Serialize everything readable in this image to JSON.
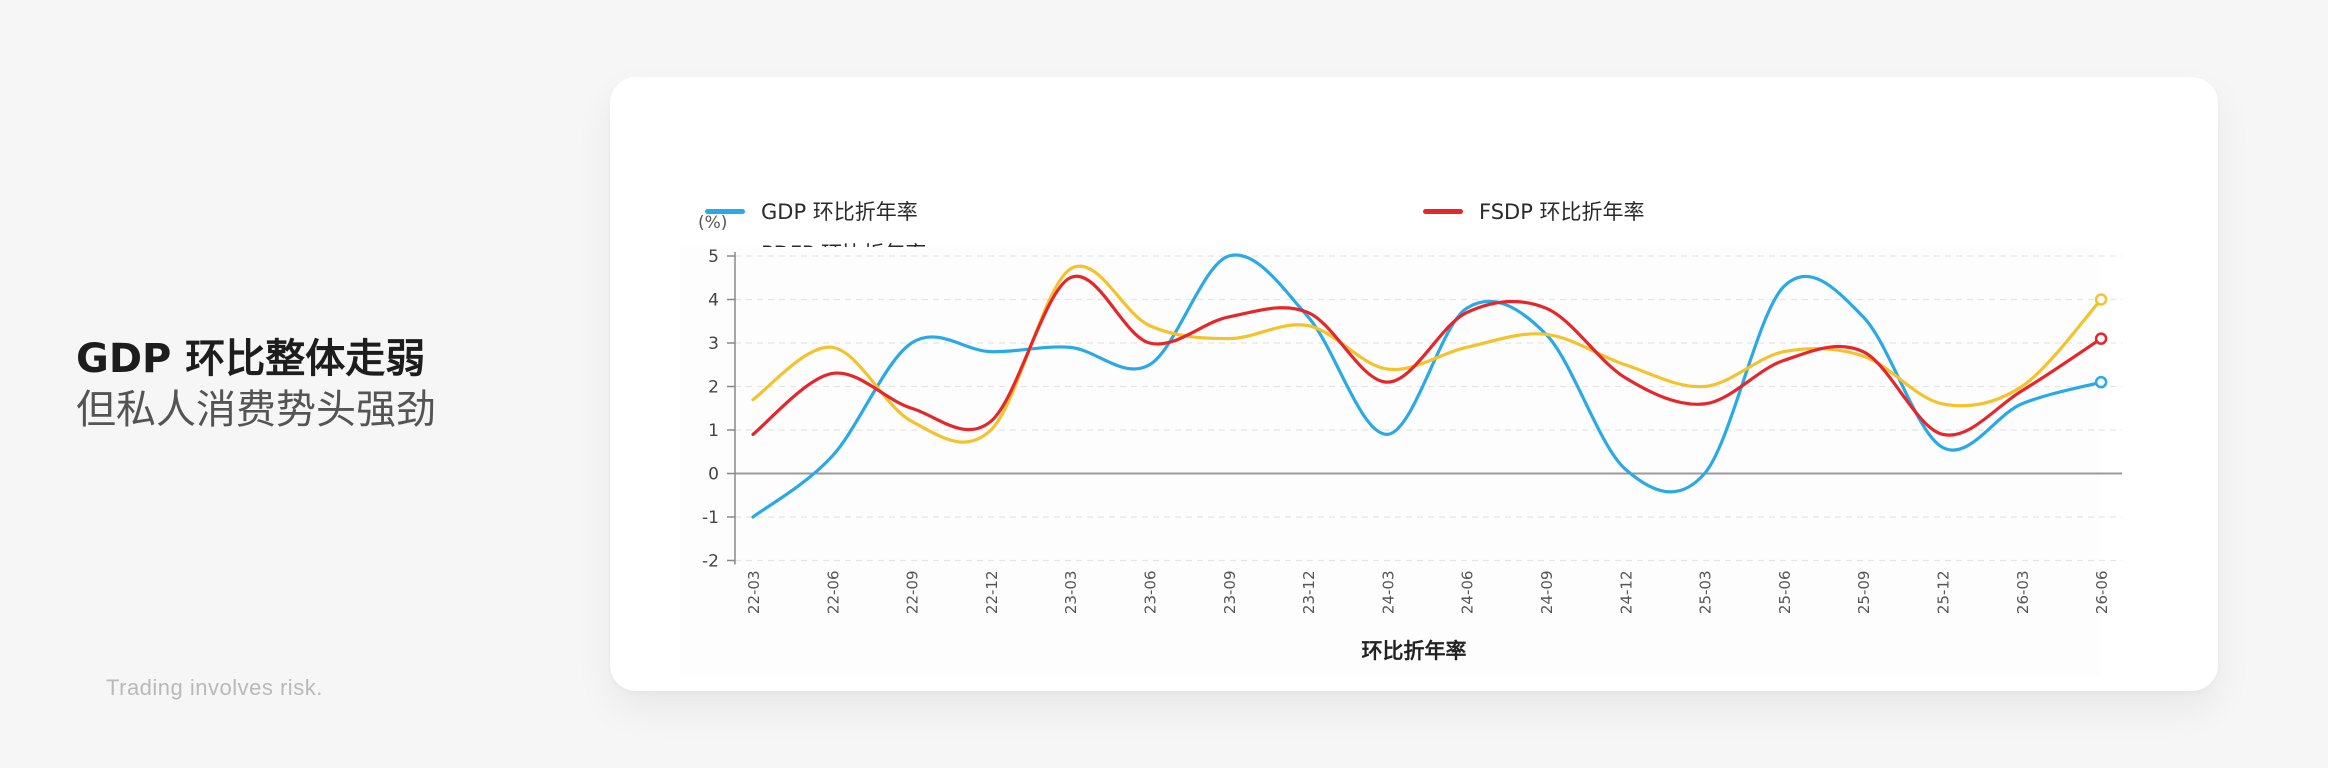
{
  "headline": {
    "line1": "GDP 环比整体走弱",
    "line2": "但私人消费势头强劲"
  },
  "disclaimer": "Trading involves risk.",
  "chart_data": {
    "type": "line",
    "smooth": true,
    "unit_label": "(%)",
    "xlabel": "环比折年率",
    "ylabel": "",
    "ylim": [
      -2,
      5
    ],
    "yticks": [
      5,
      4,
      3,
      2,
      1,
      0,
      -1,
      -2
    ],
    "grid": true,
    "legend_position": "top",
    "categories": [
      "22-03",
      "22-06",
      "22-09",
      "22-12",
      "23-03",
      "23-06",
      "23-09",
      "23-12",
      "24-03",
      "24-06",
      "24-09",
      "24-12",
      "25-03",
      "25-06",
      "25-09",
      "25-12",
      "26-03",
      "26-06"
    ],
    "series": [
      {
        "name": "GDP 环比折年率",
        "color": "#29a9e8",
        "values": [
          -1.0,
          0.4,
          3.0,
          2.8,
          2.9,
          2.5,
          5.0,
          3.6,
          0.9,
          3.8,
          3.2,
          0.1,
          0.0,
          4.3,
          3.6,
          0.6,
          1.6,
          2.1
        ]
      },
      {
        "name": "FSDP 环比折年率",
        "color": "#e5262b",
        "values": [
          0.9,
          2.3,
          1.5,
          1.2,
          4.5,
          3.0,
          3.6,
          3.7,
          2.1,
          3.7,
          3.8,
          2.2,
          1.6,
          2.6,
          2.8,
          0.9,
          1.9,
          3.1
        ]
      },
      {
        "name": "PDFP 环比折年率",
        "color": "#f5c22c",
        "values": [
          1.7,
          2.9,
          1.2,
          1.0,
          4.7,
          3.4,
          3.1,
          3.4,
          2.4,
          2.9,
          3.2,
          2.5,
          2.0,
          2.8,
          2.7,
          1.6,
          2.0,
          4.0
        ]
      }
    ]
  }
}
